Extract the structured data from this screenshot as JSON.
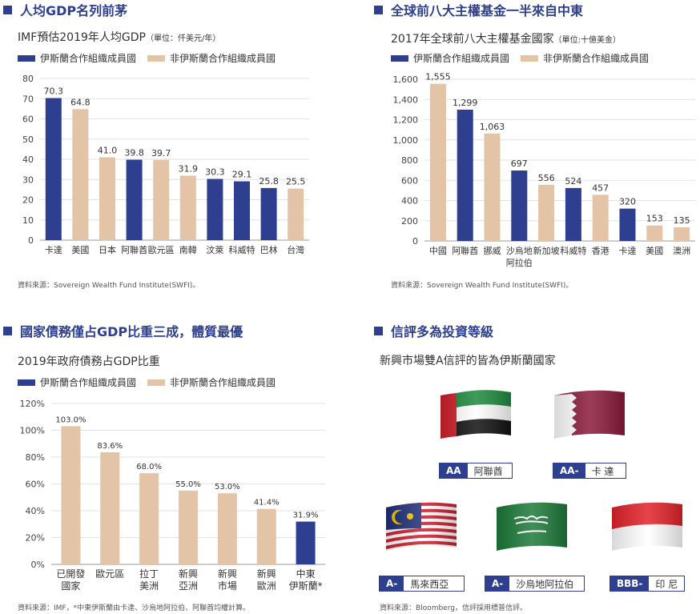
{
  "colors": {
    "member": "#2d3f8e",
    "non_member": "#e3c4a6",
    "title": "#2d3f8e"
  },
  "legend": {
    "member": "伊斯蘭合作組織成員國",
    "non_member": "非伊斯蘭合作組織成員國"
  },
  "panel1": {
    "title": "人均GDP名列前茅",
    "subtitle": "IMF預估2019年人均GDP",
    "unit": "（單位：仟美元/年）",
    "source": "資料來源：Sovereign Wealth Fund Institute(SWFI)。"
  },
  "panel2": {
    "title": "全球前八大主權基金一半來自中東",
    "subtitle": "2017年全球前八大主權基金國家",
    "unit": "（單位:十億美金）",
    "source": "資料來源：Sovereign Wealth Fund Institute(SWFI)。"
  },
  "panel3": {
    "title": "國家債務僅占GDP比重三成，體質最優",
    "subtitle": "2019年政府債務占GDP比重",
    "source": "資料來源：IMF，*中東伊斯蘭由卡達、沙烏地阿拉伯、阿聯酋均權計算。"
  },
  "panel4": {
    "title": "信評多為投資等級",
    "subtitle": "新興市場雙A信評的皆為伊斯蘭國家",
    "source": "資料來源：Bloomberg，信評採用標普信評。",
    "ratings": [
      {
        "grade": "AA",
        "country": "阿聯酋",
        "flag": "uae-flag-icon"
      },
      {
        "grade": "AA-",
        "country": "卡 達",
        "flag": "qatar-flag-icon"
      },
      {
        "grade": "A-",
        "country": "馬來西亞",
        "flag": "malaysia-flag-icon"
      },
      {
        "grade": "A-",
        "country": "沙烏地阿拉伯",
        "flag": "saudi-flag-icon"
      },
      {
        "grade": "BBB-",
        "country": "印 尼",
        "flag": "indonesia-flag-icon"
      }
    ]
  },
  "chart_data": [
    {
      "type": "bar",
      "title": "IMF預估2019年人均GDP",
      "categories": [
        "卡達",
        "美國",
        "日本",
        "阿聯酋",
        "歐元區",
        "南韓",
        "汶萊",
        "科威特",
        "巴林",
        "台灣"
      ],
      "values": [
        70.3,
        64.8,
        41.0,
        39.8,
        39.7,
        31.9,
        30.3,
        29.1,
        25.8,
        25.5
      ],
      "labels": [
        "70.3",
        "64.8",
        "41.0",
        "39.8",
        "39.7",
        "31.9",
        "30.3",
        "29.1",
        "25.8",
        "25.5"
      ],
      "member": [
        true,
        false,
        false,
        true,
        false,
        false,
        true,
        true,
        true,
        false
      ],
      "ylim": [
        0,
        80
      ],
      "yticks": [
        "0",
        "10",
        "20",
        "30",
        "40",
        "50",
        "60",
        "70",
        "80"
      ],
      "grid": true
    },
    {
      "type": "bar",
      "title": "2017年全球前八大主權基金國家",
      "categories": [
        "中國",
        "阿聯酋",
        "挪威",
        "沙烏地\n阿拉伯",
        "新加坡",
        "科威特",
        "香港",
        "卡達",
        "美國",
        "澳洲"
      ],
      "values": [
        1555,
        1299,
        1063,
        697,
        556,
        524,
        457,
        320,
        153,
        135
      ],
      "labels": [
        "1,555",
        "1,299",
        "1,063",
        "697",
        "556",
        "524",
        "457",
        "320",
        "153",
        "135"
      ],
      "member": [
        false,
        true,
        false,
        true,
        false,
        true,
        false,
        true,
        false,
        false
      ],
      "ylim": [
        0,
        1600
      ],
      "yticks": [
        "0",
        "200",
        "400",
        "600",
        "800",
        "1,000",
        "1,200",
        "1,400",
        "1,600"
      ],
      "grid": true
    },
    {
      "type": "bar",
      "title": "2019年政府債務占GDP比重",
      "categories": [
        "已開發\n國家",
        "歐元區",
        "拉丁\n美洲",
        "新興\n亞洲",
        "新興\n市場",
        "新興\n歐洲",
        "中東\n伊斯蘭*"
      ],
      "values": [
        103.0,
        83.6,
        68.0,
        55.0,
        53.0,
        41.4,
        31.9
      ],
      "labels": [
        "103.0%",
        "83.6%",
        "68.0%",
        "55.0%",
        "53.0%",
        "41.4%",
        "31.9%"
      ],
      "member": [
        false,
        false,
        false,
        false,
        false,
        false,
        true
      ],
      "ylim": [
        0,
        120
      ],
      "yticks": [
        "0%",
        "20%",
        "40%",
        "60%",
        "80%",
        "100%",
        "120%"
      ],
      "grid": true
    }
  ]
}
